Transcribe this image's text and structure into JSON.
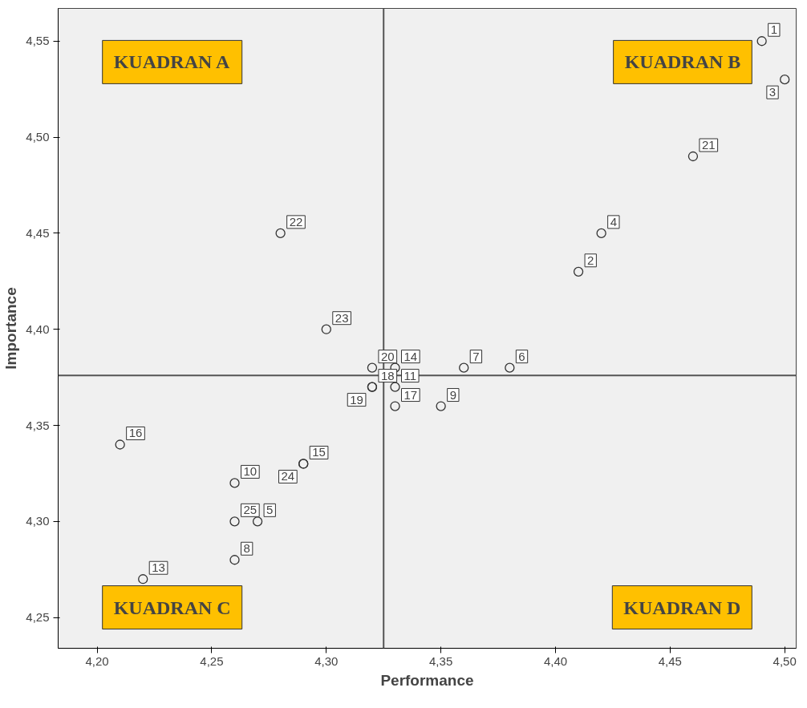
{
  "chart_data": {
    "type": "scatter",
    "xlabel": "Performance",
    "ylabel": "Importance",
    "x": [
      4.49,
      4.5,
      4.46,
      4.42,
      4.41,
      4.28,
      4.3,
      4.32,
      4.33,
      4.36,
      4.38,
      4.32,
      4.32,
      4.33,
      4.33,
      4.35,
      4.21,
      4.29,
      4.29,
      4.26,
      4.26,
      4.27,
      4.22,
      4.26
    ],
    "values": [
      4.55,
      4.53,
      4.49,
      4.45,
      4.43,
      4.45,
      4.4,
      4.38,
      4.38,
      4.38,
      4.38,
      4.37,
      4.37,
      4.37,
      4.36,
      4.36,
      4.34,
      4.33,
      4.33,
      4.32,
      4.3,
      4.3,
      4.27,
      4.28
    ],
    "color": "#333333",
    "marker": "circle",
    "grid": false,
    "xlim": [
      4.183,
      4.505
    ],
    "ylim": [
      4.234,
      4.567
    ],
    "xticks": [
      {
        "value": 4.2,
        "label": "4,20"
      },
      {
        "value": 4.25,
        "label": "4,25"
      },
      {
        "value": 4.3,
        "label": "4,30"
      },
      {
        "value": 4.35,
        "label": "4,35"
      },
      {
        "value": 4.4,
        "label": "4,40"
      },
      {
        "value": 4.45,
        "label": "4,45"
      },
      {
        "value": 4.5,
        "label": "4,50"
      }
    ],
    "yticks": [
      {
        "value": 4.25,
        "label": "4,25"
      },
      {
        "value": 4.3,
        "label": "4,30"
      },
      {
        "value": 4.35,
        "label": "4,35"
      },
      {
        "value": 4.4,
        "label": "4,40"
      },
      {
        "value": 4.45,
        "label": "4,45"
      },
      {
        "value": 4.5,
        "label": "4,50"
      },
      {
        "value": 4.55,
        "label": "4,55"
      }
    ],
    "ref_lines": [
      {
        "axis": "x",
        "value": 4.325,
        "color": "#555555"
      },
      {
        "axis": "y",
        "value": 4.376,
        "color": "#555555"
      }
    ],
    "annotations": [
      "KUADRAN A",
      "KUADRAN B",
      "KUADRAN C",
      "KUADRAN D",
      {
        "text": "1",
        "x": 4.49,
        "y": 4.55
      },
      {
        "text": "3",
        "x": 4.5,
        "y": 4.53
      },
      {
        "text": "21",
        "x": 4.46,
        "y": 4.49
      },
      {
        "text": "4",
        "x": 4.42,
        "y": 4.45
      },
      {
        "text": "2",
        "x": 4.41,
        "y": 4.43
      },
      {
        "text": "22",
        "x": 4.28,
        "y": 4.45
      },
      {
        "text": "23",
        "x": 4.3,
        "y": 4.4
      },
      {
        "text": "20",
        "x": 4.32,
        "y": 4.38
      },
      {
        "text": "14",
        "x": 4.33,
        "y": 4.38
      },
      {
        "text": "7",
        "x": 4.36,
        "y": 4.38
      },
      {
        "text": "6",
        "x": 4.38,
        "y": 4.38
      },
      {
        "text": "18",
        "x": 4.32,
        "y": 4.37
      },
      {
        "text": "19",
        "x": 4.32,
        "y": 4.37
      },
      {
        "text": "11",
        "x": 4.33,
        "y": 4.37
      },
      {
        "text": "17",
        "x": 4.33,
        "y": 4.36
      },
      {
        "text": "9",
        "x": 4.35,
        "y": 4.36
      },
      {
        "text": "16",
        "x": 4.21,
        "y": 4.34
      },
      {
        "text": "15",
        "x": 4.29,
        "y": 4.33
      },
      {
        "text": "24",
        "x": 4.29,
        "y": 4.33
      },
      {
        "text": "10",
        "x": 4.26,
        "y": 4.32
      },
      {
        "text": "25",
        "x": 4.26,
        "y": 4.3
      },
      {
        "text": "5",
        "x": 4.27,
        "y": 4.3
      },
      {
        "text": "13",
        "x": 4.22,
        "y": 4.27
      },
      {
        "text": "8",
        "x": 4.26,
        "y": 4.28
      }
    ]
  }
}
